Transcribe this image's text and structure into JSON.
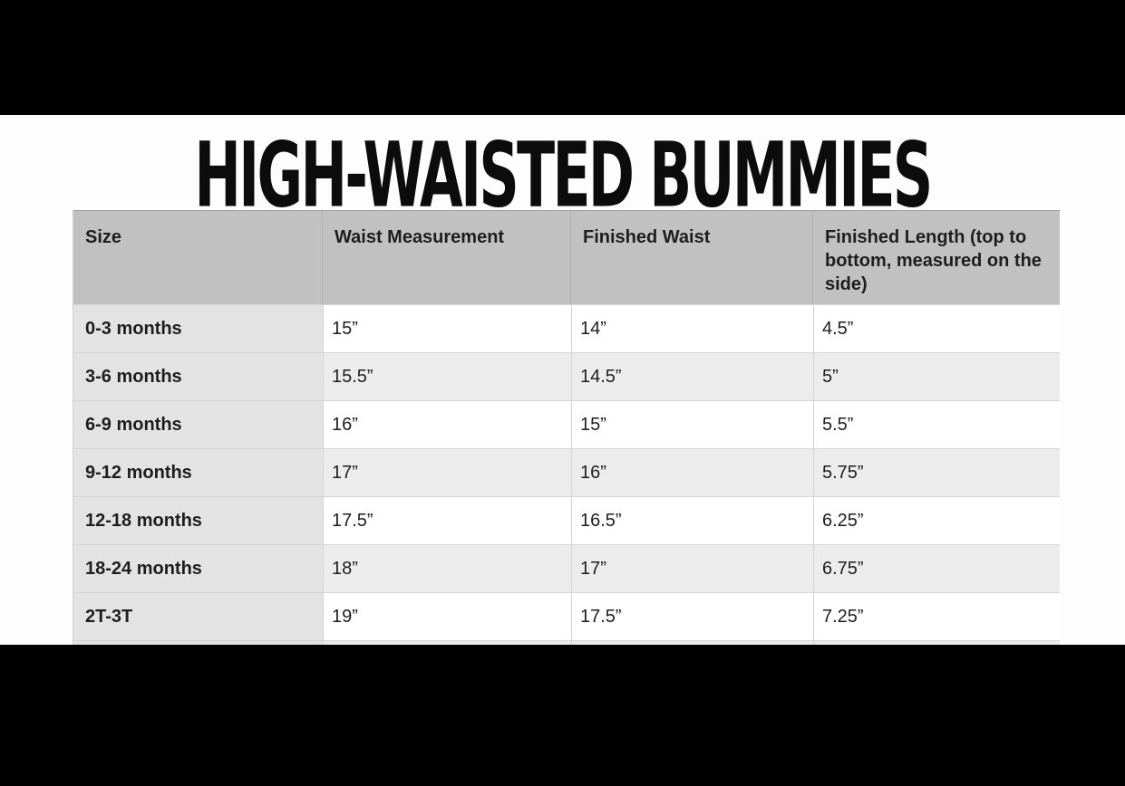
{
  "title": "HIGH-WAISTED BUMMIES",
  "chart_data": {
    "type": "table",
    "title": "HIGH-WAISTED BUMMIES",
    "columns": [
      "Size",
      "Waist Measurement",
      "Finished Waist",
      "Finished Length (top to bottom, measured on the side)"
    ],
    "rows": [
      [
        "0-3 months",
        "15”",
        "14”",
        "4.5”"
      ],
      [
        "3-6 months",
        "15.5”",
        "14.5”",
        "5”"
      ],
      [
        "6-9 months",
        "16”",
        "15”",
        "5.5”"
      ],
      [
        "9-12 months",
        "17”",
        "16”",
        "5.75”"
      ],
      [
        "12-18 months",
        "17.5”",
        "16.5”",
        "6.25”"
      ],
      [
        "18-24 months",
        "18”",
        "17”",
        "6.75”"
      ],
      [
        "2T-3T",
        "19”",
        "17.5”",
        "7.25”"
      ]
    ],
    "layout_hints": {
      "header_bg": "#c1c1c1",
      "size_column_bg": "#e3e3e3",
      "stripe_bg": "#ececec",
      "row_bg": "#ffffff",
      "letterbox_color": "#000000",
      "text_color": "#1e1e1e"
    }
  }
}
